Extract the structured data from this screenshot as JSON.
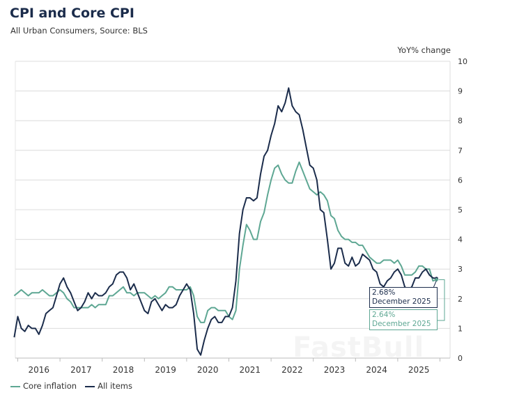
{
  "title": "CPI and Core CPI",
  "subtitle": "All Urban Consumers, Source: BLS",
  "watermark": "FastBull",
  "chart_data": {
    "type": "line",
    "title": "CPI and Core CPI",
    "ylabel": "YoY% change",
    "ylim": [
      0,
      10
    ],
    "yticks": [
      "0",
      "1",
      "2",
      "3",
      "4",
      "5",
      "6",
      "7",
      "8",
      "9",
      "10"
    ],
    "xticks": [
      "2016",
      "2017",
      "2018",
      "2019",
      "2020",
      "2021",
      "2022",
      "2023",
      "2024",
      "2025"
    ],
    "x_start": "2015-12",
    "x_end": "2025-12",
    "frequency": "monthly",
    "grid": true,
    "legend": "bottom-left",
    "series": [
      {
        "name": "Core inflation",
        "color": "#5ea793",
        "values": [
          2.1,
          2.2,
          2.3,
          2.2,
          2.1,
          2.2,
          2.2,
          2.2,
          2.3,
          2.2,
          2.1,
          2.1,
          2.2,
          2.3,
          2.2,
          2.0,
          1.9,
          1.7,
          1.7,
          1.7,
          1.7,
          1.7,
          1.8,
          1.7,
          1.8,
          1.8,
          1.8,
          2.1,
          2.1,
          2.2,
          2.3,
          2.4,
          2.2,
          2.2,
          2.1,
          2.2,
          2.2,
          2.2,
          2.1,
          2.0,
          2.1,
          2.0,
          2.1,
          2.2,
          2.4,
          2.4,
          2.3,
          2.3,
          2.3,
          2.3,
          2.4,
          2.1,
          1.4,
          1.2,
          1.2,
          1.6,
          1.7,
          1.7,
          1.6,
          1.6,
          1.6,
          1.4,
          1.3,
          1.6,
          3.0,
          3.8,
          4.5,
          4.3,
          4.0,
          4.0,
          4.6,
          4.9,
          5.5,
          6.0,
          6.4,
          6.5,
          6.2,
          6.0,
          5.9,
          5.9,
          6.3,
          6.6,
          6.3,
          6.0,
          5.7,
          5.6,
          5.5,
          5.6,
          5.5,
          5.3,
          4.8,
          4.7,
          4.3,
          4.1,
          4.0,
          4.0,
          3.9,
          3.9,
          3.8,
          3.8,
          3.6,
          3.4,
          3.3,
          3.2,
          3.2,
          3.3,
          3.3,
          3.3,
          3.2,
          3.3,
          3.1,
          2.8,
          2.8,
          2.8,
          2.9,
          3.1,
          3.1,
          3.0,
          3.0,
          2.6,
          2.64
        ]
      },
      {
        "name": "All items",
        "color": "#1b2c4b",
        "values": [
          0.7,
          1.4,
          1.0,
          0.9,
          1.1,
          1.0,
          1.0,
          0.8,
          1.1,
          1.5,
          1.6,
          1.7,
          2.1,
          2.5,
          2.7,
          2.4,
          2.2,
          1.9,
          1.6,
          1.7,
          1.9,
          2.2,
          2.0,
          2.2,
          2.1,
          2.1,
          2.2,
          2.4,
          2.5,
          2.8,
          2.9,
          2.9,
          2.7,
          2.3,
          2.5,
          2.2,
          1.9,
          1.6,
          1.5,
          1.9,
          2.0,
          1.8,
          1.6,
          1.8,
          1.7,
          1.7,
          1.8,
          2.1,
          2.3,
          2.5,
          2.3,
          1.5,
          0.3,
          0.1,
          0.6,
          1.0,
          1.3,
          1.4,
          1.2,
          1.2,
          1.4,
          1.4,
          1.7,
          2.6,
          4.2,
          5.0,
          5.4,
          5.4,
          5.3,
          5.4,
          6.2,
          6.8,
          7.0,
          7.5,
          7.9,
          8.5,
          8.3,
          8.6,
          9.1,
          8.5,
          8.3,
          8.2,
          7.7,
          7.1,
          6.5,
          6.4,
          6.0,
          5.0,
          4.9,
          4.0,
          3.0,
          3.2,
          3.7,
          3.7,
          3.2,
          3.1,
          3.4,
          3.1,
          3.2,
          3.5,
          3.4,
          3.3,
          3.0,
          2.9,
          2.5,
          2.4,
          2.6,
          2.7,
          2.9,
          3.0,
          2.8,
          2.4,
          2.3,
          2.4,
          2.7,
          2.7,
          2.9,
          3.0,
          2.8,
          2.7,
          2.68
        ]
      }
    ],
    "annotations": [
      {
        "series": "All items",
        "value": "2.68%",
        "date": "December 2025"
      },
      {
        "series": "Core inflation",
        "value": "2.64%",
        "date": "December 2025"
      }
    ]
  }
}
